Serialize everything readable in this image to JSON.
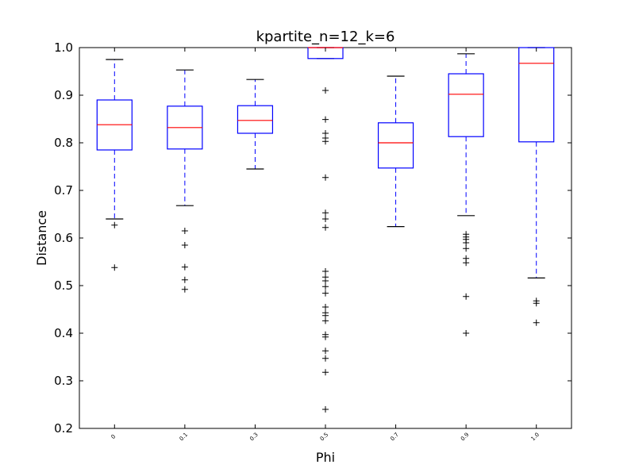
{
  "chart_data": {
    "type": "box",
    "title": "kpartite_n=12_k=6",
    "xlabel": "Phi",
    "ylabel": "Distance",
    "ylim": [
      0.2,
      1.0
    ],
    "yticks": [
      "0.2",
      "0.3",
      "0.4",
      "0.5",
      "0.6",
      "0.7",
      "0.8",
      "0.9",
      "1.0"
    ],
    "grid": false,
    "colors": {
      "box": "#0000ff",
      "median": "#ff0000",
      "whisker_cap": "#000000",
      "flier": "#000000"
    },
    "categories": [
      "0",
      "0.1",
      "0.3",
      "0.5",
      "0.7",
      "0.9",
      "1.0"
    ],
    "boxes": [
      {
        "q1": 0.785,
        "median": 0.838,
        "q3": 0.89,
        "whisker_low": 0.64,
        "whisker_high": 0.975,
        "outliers": [
          0.627,
          0.538
        ]
      },
      {
        "q1": 0.787,
        "median": 0.832,
        "q3": 0.877,
        "whisker_low": 0.668,
        "whisker_high": 0.953,
        "outliers": [
          0.615,
          0.585,
          0.539,
          0.512,
          0.492
        ]
      },
      {
        "q1": 0.82,
        "median": 0.847,
        "q3": 0.878,
        "whisker_low": 0.745,
        "whisker_high": 0.933,
        "outliers": []
      },
      {
        "q1": 0.977,
        "median": 1.0,
        "q3": 1.0,
        "whisker_low": 0.977,
        "whisker_high": 1.0,
        "outliers": [
          0.91,
          0.849,
          0.82,
          0.81,
          0.803,
          0.727,
          0.653,
          0.64,
          0.622,
          0.53,
          0.518,
          0.51,
          0.498,
          0.484,
          0.455,
          0.443,
          0.437,
          0.426,
          0.397,
          0.392,
          0.363,
          0.347,
          0.318,
          0.24
        ]
      },
      {
        "q1": 0.747,
        "median": 0.8,
        "q3": 0.842,
        "whisker_low": 0.624,
        "whisker_high": 0.94,
        "outliers": []
      },
      {
        "q1": 0.813,
        "median": 0.902,
        "q3": 0.945,
        "whisker_low": 0.647,
        "whisker_high": 0.987,
        "outliers": [
          0.608,
          0.602,
          0.597,
          0.59,
          0.578,
          0.557,
          0.548,
          0.477,
          0.4
        ]
      },
      {
        "q1": 0.802,
        "median": 0.967,
        "q3": 1.0,
        "whisker_low": 0.516,
        "whisker_high": 1.0,
        "outliers": [
          0.468,
          0.463,
          0.422
        ]
      }
    ]
  }
}
